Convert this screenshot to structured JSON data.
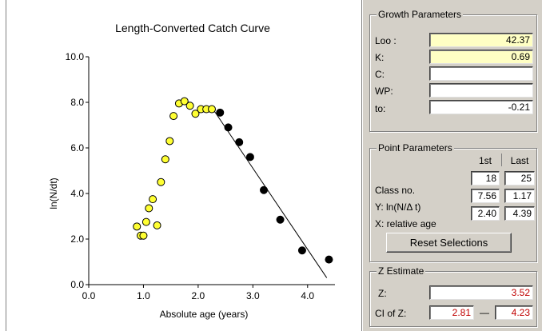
{
  "chart_data": {
    "type": "scatter",
    "title": "Length-Converted Catch Curve",
    "xlabel": "Absolute age (years)",
    "ylabel": "ln(N/dt)",
    "xlim": [
      0,
      4.5
    ],
    "ylim": [
      0,
      10
    ],
    "x_ticks": [
      "0.0",
      "1.0",
      "2.0",
      "3.0",
      "4.0"
    ],
    "y_ticks": [
      "0.0",
      "2.0",
      "4.0",
      "6.0",
      "8.0",
      "10.0"
    ],
    "series": [
      {
        "color": "#ffff33",
        "points": [
          [
            0.88,
            2.55
          ],
          [
            0.95,
            2.15
          ],
          [
            1.0,
            2.15
          ],
          [
            1.05,
            2.75
          ],
          [
            1.1,
            3.35
          ],
          [
            1.17,
            3.75
          ],
          [
            1.25,
            2.6
          ],
          [
            1.32,
            4.5
          ],
          [
            1.4,
            5.5
          ],
          [
            1.48,
            6.3
          ],
          [
            1.55,
            7.4
          ],
          [
            1.65,
            7.95
          ],
          [
            1.75,
            8.05
          ],
          [
            1.85,
            7.85
          ],
          [
            1.95,
            7.5
          ],
          [
            2.05,
            7.7
          ],
          [
            2.15,
            7.7
          ],
          [
            2.25,
            7.7
          ]
        ]
      },
      {
        "color": "#000000",
        "points": [
          [
            2.4,
            7.55
          ],
          [
            2.55,
            6.9
          ],
          [
            2.75,
            6.25
          ],
          [
            2.95,
            5.6
          ],
          [
            3.2,
            4.15
          ],
          [
            3.5,
            2.85
          ],
          [
            3.9,
            1.5
          ],
          [
            4.39,
            1.1
          ]
        ]
      }
    ],
    "regression_line": {
      "x": [
        2.3,
        4.35
      ],
      "y": [
        7.6,
        0.3
      ]
    }
  },
  "growth": {
    "title": "Growth Parameters",
    "loo_label": "Loo :",
    "loo_value": "42.37",
    "k_label": "K:",
    "k_value": "0.69",
    "c_label": "C:",
    "c_value": "",
    "wp_label": "WP:",
    "wp_value": "",
    "to_label": "to:",
    "to_value": "-0.21"
  },
  "points": {
    "title": "Point Parameters",
    "col_first": "1st",
    "col_last": "Last",
    "class_label": "Class no.",
    "class_first": "18",
    "class_last": "25",
    "y_label": "Y: ln(N/Δ t)",
    "y_first": "7.56",
    "y_last": "1.17",
    "x_label": "X: relative age",
    "x_first": "2.40",
    "x_last": "4.39",
    "reset_label": "Reset Selections"
  },
  "z": {
    "title": "Z Estimate",
    "z_label": "Z:",
    "z_value": "3.52",
    "ci_label": "CI of Z:",
    "ci_low": "2.81",
    "ci_dash": "—",
    "ci_high": "4.23"
  }
}
